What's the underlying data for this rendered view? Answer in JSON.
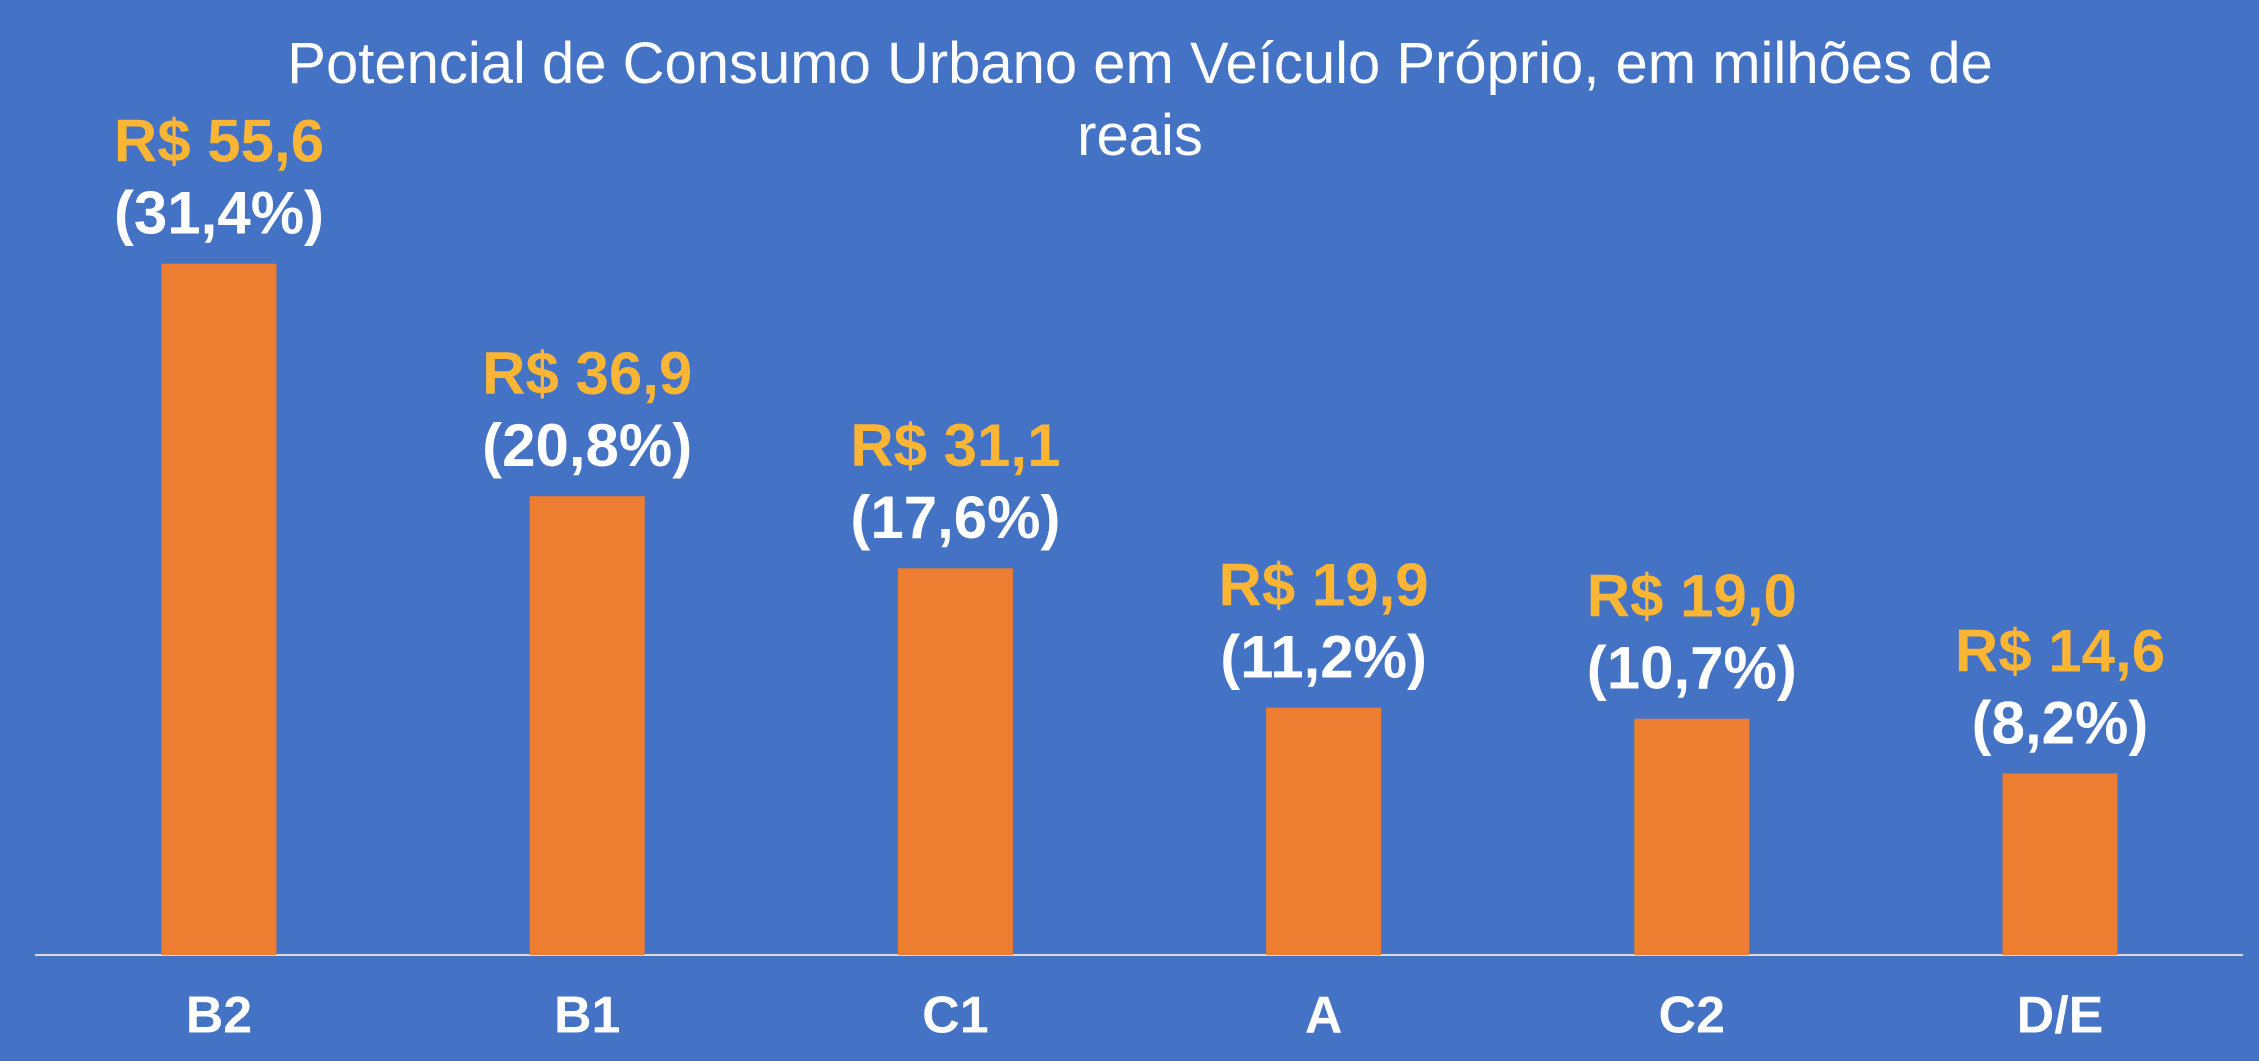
{
  "chart_data": {
    "type": "bar",
    "title": "Potencial de Consumo Urbano em Veículo Próprio, em milhões de reais",
    "categories": [
      "B2",
      "B1",
      "C1",
      "A",
      "C2",
      "D/E"
    ],
    "values": [
      55.6,
      36.9,
      31.1,
      19.9,
      19.0,
      14.6
    ],
    "value_labels": [
      "R$ 55,6",
      "R$ 36,9",
      "R$ 31,1",
      "R$ 19,9",
      "R$ 19,0",
      "R$ 14,6"
    ],
    "percent_labels": [
      "(31,4%)",
      "(20,8%)",
      "(17,6%)",
      "(11,2%)",
      "(10,7%)",
      "(8,2%)"
    ],
    "color": "#ed7d31",
    "label_color": "#fbb534",
    "ylim": [
      0,
      60
    ]
  }
}
